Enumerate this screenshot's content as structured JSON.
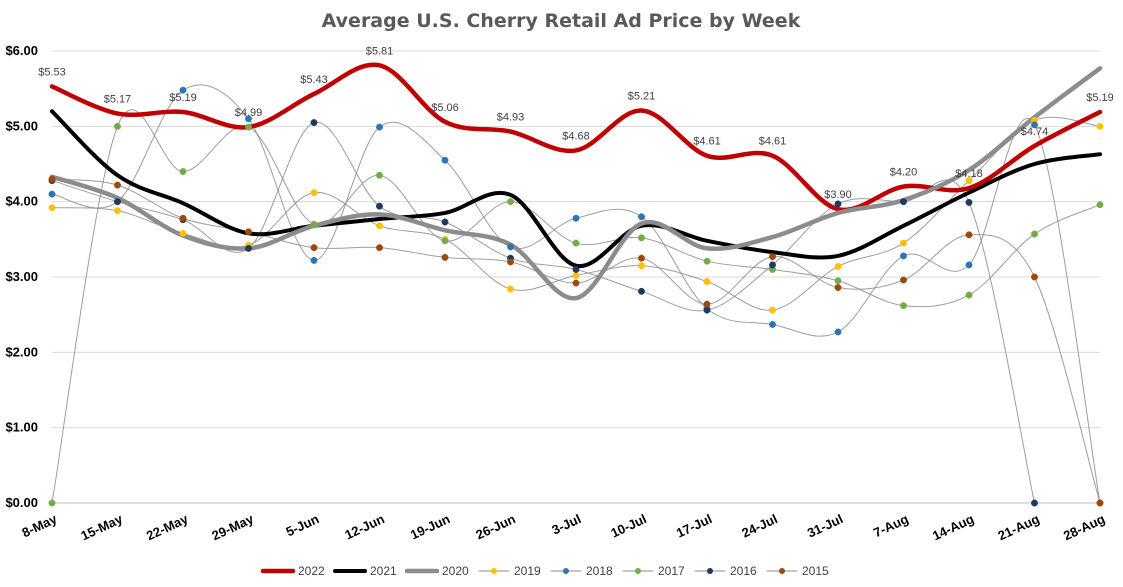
{
  "chart_data": {
    "type": "line",
    "title": "Average U.S. Cherry Retail Ad Price by Week",
    "xlabel": "",
    "ylabel": "",
    "ylim": [
      0,
      6
    ],
    "yticks": [
      "$0.00",
      "$1.00",
      "$2.00",
      "$3.00",
      "$4.00",
      "$5.00",
      "$6.00"
    ],
    "ytick_values": [
      0,
      1,
      2,
      3,
      4,
      5,
      6
    ],
    "categories": [
      "8-May",
      "15-May",
      "22-May",
      "29-May",
      "5-Jun",
      "12-Jun",
      "19-Jun",
      "26-Jun",
      "3-Jul",
      "10-Jul",
      "17-Jul",
      "24-Jul",
      "31-Jul",
      "7-Aug",
      "14-Aug",
      "21-Aug",
      "28-Aug"
    ],
    "grid": "horizontal",
    "legend_position": "bottom",
    "series": [
      {
        "name": "2022",
        "color": "#C00000",
        "width": 4.5,
        "markers": false,
        "values": [
          5.53,
          5.17,
          5.19,
          4.99,
          5.43,
          5.81,
          5.06,
          4.93,
          4.68,
          5.21,
          4.61,
          4.61,
          3.9,
          4.2,
          4.18,
          4.74,
          5.19
        ],
        "labels": [
          "$5.53",
          "$5.17",
          "$5.19",
          "$4.99",
          "$5.43",
          "$5.81",
          "$5.06",
          "$4.93",
          "$4.68",
          "$5.21",
          "$4.61",
          "$4.61",
          "$3.90",
          "$4.20",
          "$4.18",
          "$4.74",
          "$5.19"
        ]
      },
      {
        "name": "2021",
        "color": "#000000",
        "width": 4,
        "markers": false,
        "values": [
          5.2,
          4.35,
          3.98,
          3.58,
          3.68,
          3.77,
          3.85,
          4.09,
          3.15,
          3.68,
          3.48,
          3.33,
          3.28,
          3.68,
          4.12,
          4.5,
          4.63
        ]
      },
      {
        "name": "2020",
        "color": "#8C8C8C",
        "width": 4.5,
        "markers": false,
        "values": [
          4.33,
          4.05,
          3.55,
          3.38,
          3.68,
          3.83,
          3.62,
          3.43,
          2.72,
          3.71,
          3.38,
          3.53,
          3.85,
          4.02,
          4.42,
          5.12,
          5.77
        ]
      },
      {
        "name": "2019",
        "color": "#FFC000",
        "width": 1,
        "markers": true,
        "values": [
          3.92,
          3.88,
          3.58,
          3.42,
          4.12,
          3.68,
          3.5,
          2.84,
          3.02,
          3.15,
          2.94,
          2.56,
          3.14,
          3.45,
          4.28,
          5.08,
          5.0
        ]
      },
      {
        "name": "2018",
        "color": "#2E75B6",
        "width": 1,
        "markers": true,
        "values": [
          4.1,
          4.0,
          5.48,
          5.1,
          3.22,
          4.99,
          4.55,
          3.4,
          3.78,
          3.8,
          2.58,
          2.37,
          2.27,
          3.28,
          3.16,
          5.02,
          0.0
        ]
      },
      {
        "name": "2017",
        "color": "#70AD47",
        "width": 1,
        "markers": true,
        "values": [
          0.0,
          5.0,
          4.4,
          4.99,
          3.7,
          4.35,
          3.48,
          4.0,
          3.45,
          3.52,
          3.21,
          3.1,
          2.95,
          2.62,
          2.76,
          3.57,
          3.96
        ]
      },
      {
        "name": "2016",
        "color": "#203864",
        "width": 1,
        "markers": true,
        "values": [
          4.28,
          4.0,
          3.76,
          3.38,
          5.05,
          3.94,
          3.73,
          3.25,
          3.1,
          2.81,
          2.56,
          3.16,
          3.97,
          4.0,
          3.99,
          0.0,
          null
        ]
      },
      {
        "name": "2015",
        "color": "#9E480E",
        "width": 1,
        "markers": true,
        "values": [
          4.3,
          4.22,
          3.78,
          3.6,
          3.39,
          3.39,
          3.26,
          3.2,
          2.92,
          3.25,
          2.64,
          3.27,
          2.86,
          2.96,
          3.56,
          3.0,
          0.0
        ]
      }
    ]
  }
}
